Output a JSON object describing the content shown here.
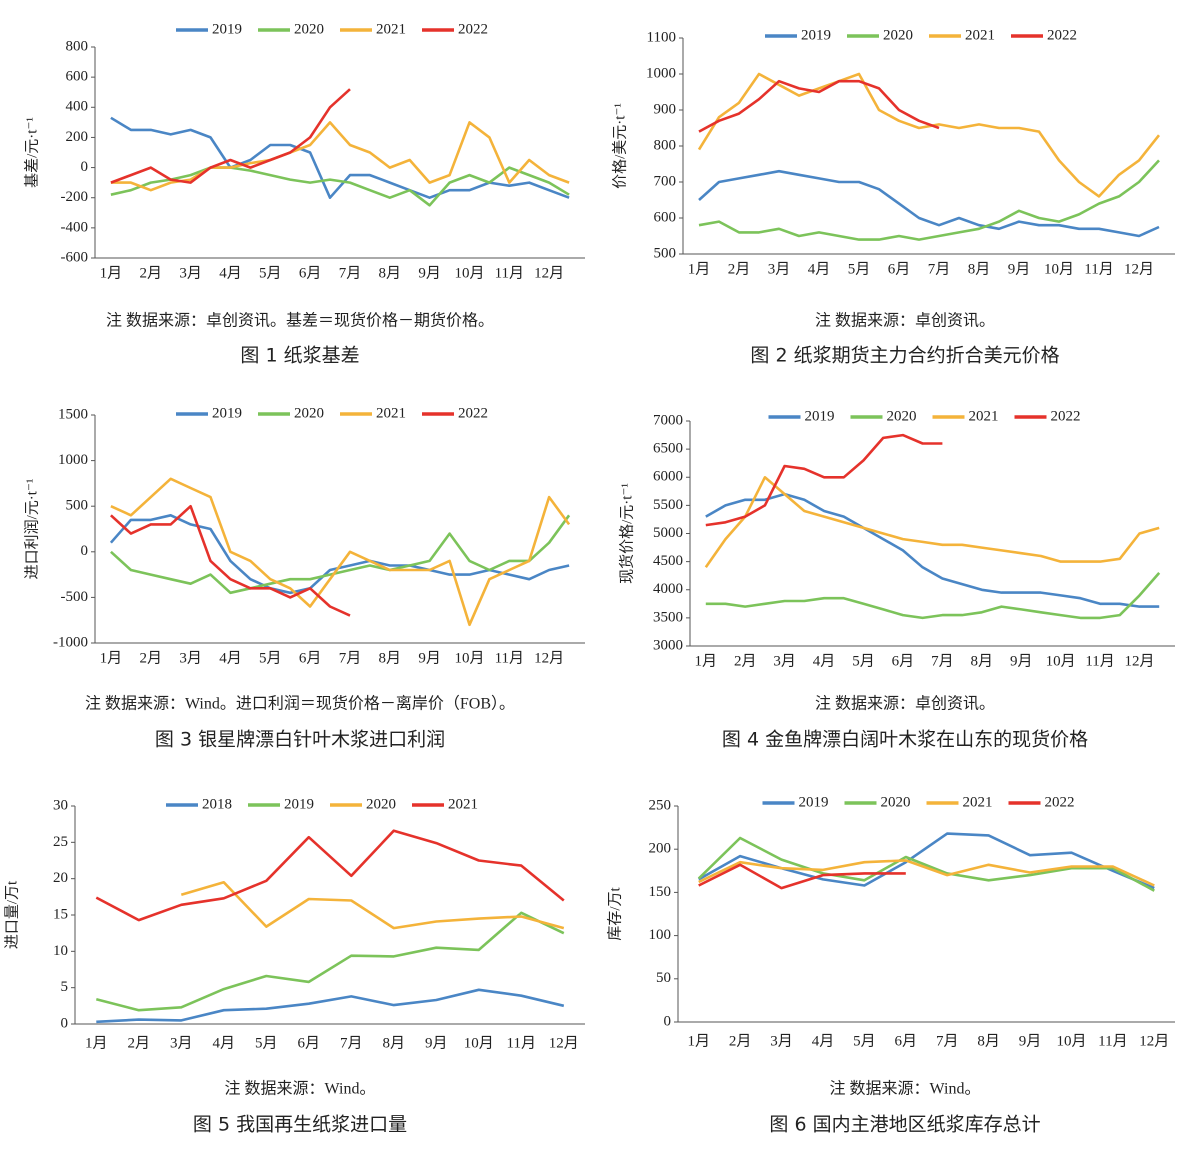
{
  "chart_data": [
    {
      "type": "line",
      "ylabel": "基差/元·t⁻¹",
      "note": "注  数据来源：卓创资讯。基差＝现货价格－期货价格。",
      "caption": "图 1   纸浆基差",
      "x": [
        1,
        1.5,
        2,
        2.5,
        3,
        3.5,
        4,
        4.5,
        5,
        5.5,
        6,
        6.5,
        7,
        7.5,
        8,
        8.5,
        9,
        9.5,
        10,
        10.5,
        11,
        11.5,
        12,
        12.5
      ],
      "xlim": [
        0.6,
        12.9
      ],
      "xticks": [
        {
          "value": 1,
          "label": "1月"
        },
        {
          "value": 2,
          "label": "2月"
        },
        {
          "value": 3,
          "label": "3月"
        },
        {
          "value": 4,
          "label": "4月"
        },
        {
          "value": 5,
          "label": "5月"
        },
        {
          "value": 6,
          "label": "6月"
        },
        {
          "value": 7,
          "label": "7月"
        },
        {
          "value": 8,
          "label": "8月"
        },
        {
          "value": 9,
          "label": "9月"
        },
        {
          "value": 10,
          "label": "10月"
        },
        {
          "value": 11,
          "label": "11月"
        },
        {
          "value": 12,
          "label": "12月"
        }
      ],
      "ylim": [
        -600,
        800
      ],
      "yticks": [
        -600,
        -400,
        -200,
        0,
        200,
        400,
        600,
        800
      ],
      "grid": false,
      "series": [
        {
          "name": "2019",
          "color": "#4a86c5",
          "values": [
            330,
            250,
            250,
            220,
            250,
            200,
            0,
            50,
            150,
            150,
            100,
            -200,
            -50,
            -50,
            -100,
            -150,
            -200,
            -150,
            -150,
            -100,
            -120,
            -100,
            -150,
            -200
          ]
        },
        {
          "name": "2020",
          "color": "#7cc35a",
          "values": [
            -180,
            -150,
            -100,
            -80,
            -50,
            0,
            0,
            -20,
            -50,
            -80,
            -100,
            -80,
            -100,
            -150,
            -200,
            -150,
            -250,
            -100,
            -50,
            -100,
            0,
            -50,
            -100,
            -180
          ]
        },
        {
          "name": "2021",
          "color": "#f4b33a",
          "values": [
            -100,
            -100,
            -150,
            -100,
            -80,
            0,
            0,
            30,
            50,
            100,
            150,
            300,
            150,
            100,
            0,
            50,
            -100,
            -50,
            300,
            200,
            -100,
            50,
            -50,
            -100
          ]
        },
        {
          "name": "2022",
          "color": "#e5322b",
          "values": [
            -100,
            -50,
            0,
            -80,
            -100,
            0,
            50,
            0,
            50,
            100,
            200,
            400,
            520,
            null,
            null,
            null,
            null,
            null,
            null,
            null,
            null,
            null,
            null,
            null
          ]
        }
      ]
    },
    {
      "type": "line",
      "ylabel": "价格/美元·t⁻¹",
      "note": "注  数据来源：卓创资讯。",
      "caption": "图 2   纸浆期货主力合约折合美元价格",
      "x": [
        1,
        1.5,
        2,
        2.5,
        3,
        3.5,
        4,
        4.5,
        5,
        5.5,
        6,
        6.5,
        7,
        7.5,
        8,
        8.5,
        9,
        9.5,
        10,
        10.5,
        11,
        11.5,
        12,
        12.5
      ],
      "xlim": [
        0.6,
        12.9
      ],
      "xticks": [
        {
          "value": 1,
          "label": "1月"
        },
        {
          "value": 2,
          "label": "2月"
        },
        {
          "value": 3,
          "label": "3月"
        },
        {
          "value": 4,
          "label": "4月"
        },
        {
          "value": 5,
          "label": "5月"
        },
        {
          "value": 6,
          "label": "6月"
        },
        {
          "value": 7,
          "label": "7月"
        },
        {
          "value": 8,
          "label": "8月"
        },
        {
          "value": 9,
          "label": "9月"
        },
        {
          "value": 10,
          "label": "10月"
        },
        {
          "value": 11,
          "label": "11月"
        },
        {
          "value": 12,
          "label": "12月"
        }
      ],
      "ylim": [
        500,
        1100
      ],
      "yticks": [
        500,
        600,
        700,
        800,
        900,
        1000,
        1100
      ],
      "grid": false,
      "series": [
        {
          "name": "2019",
          "color": "#4a86c5",
          "values": [
            650,
            700,
            710,
            720,
            730,
            720,
            710,
            700,
            700,
            680,
            640,
            600,
            580,
            600,
            580,
            570,
            590,
            580,
            580,
            570,
            570,
            560,
            550,
            575
          ]
        },
        {
          "name": "2020",
          "color": "#7cc35a",
          "values": [
            580,
            590,
            560,
            560,
            570,
            550,
            560,
            550,
            540,
            540,
            550,
            540,
            550,
            560,
            570,
            590,
            620,
            600,
            590,
            610,
            640,
            660,
            700,
            760
          ]
        },
        {
          "name": "2021",
          "color": "#f4b33a",
          "values": [
            790,
            880,
            920,
            1000,
            970,
            940,
            960,
            980,
            1000,
            900,
            870,
            850,
            860,
            850,
            860,
            850,
            850,
            840,
            760,
            700,
            660,
            720,
            760,
            830
          ]
        },
        {
          "name": "2022",
          "color": "#e5322b",
          "values": [
            840,
            870,
            890,
            930,
            980,
            960,
            950,
            980,
            980,
            960,
            900,
            870,
            850,
            null,
            null,
            null,
            null,
            null,
            null,
            null,
            null,
            null,
            null,
            null
          ]
        }
      ]
    },
    {
      "type": "line",
      "ylabel": "进口利润/元·t⁻¹",
      "note": "注  数据来源：Wind。进口利润＝现货价格－离岸价（FOB）。",
      "caption": "图 3   银星牌漂白针叶木浆进口利润",
      "x": [
        1,
        1.5,
        2,
        2.5,
        3,
        3.5,
        4,
        4.5,
        5,
        5.5,
        6,
        6.5,
        7,
        7.5,
        8,
        8.5,
        9,
        9.5,
        10,
        10.5,
        11,
        11.5,
        12,
        12.5
      ],
      "xlim": [
        0.6,
        12.9
      ],
      "xticks": [
        {
          "value": 1,
          "label": "1月"
        },
        {
          "value": 2,
          "label": "2月"
        },
        {
          "value": 3,
          "label": "3月"
        },
        {
          "value": 4,
          "label": "4月"
        },
        {
          "value": 5,
          "label": "5月"
        },
        {
          "value": 6,
          "label": "6月"
        },
        {
          "value": 7,
          "label": "7月"
        },
        {
          "value": 8,
          "label": "8月"
        },
        {
          "value": 9,
          "label": "9月"
        },
        {
          "value": 10,
          "label": "10月"
        },
        {
          "value": 11,
          "label": "11月"
        },
        {
          "value": 12,
          "label": "12月"
        }
      ],
      "ylim": [
        -1000,
        1500
      ],
      "yticks": [
        -1000,
        -500,
        0,
        500,
        1000,
        1500
      ],
      "grid": false,
      "series": [
        {
          "name": "2019",
          "color": "#4a86c5",
          "values": [
            100,
            350,
            350,
            400,
            300,
            250,
            -100,
            -300,
            -400,
            -450,
            -400,
            -200,
            -150,
            -100,
            -150,
            -150,
            -200,
            -250,
            -250,
            -200,
            -250,
            -300,
            -200,
            -150
          ]
        },
        {
          "name": "2020",
          "color": "#7cc35a",
          "values": [
            0,
            -200,
            -250,
            -300,
            -350,
            -250,
            -450,
            -400,
            -350,
            -300,
            -300,
            -250,
            -200,
            -150,
            -200,
            -150,
            -100,
            200,
            -100,
            -200,
            -100,
            -100,
            100,
            400
          ]
        },
        {
          "name": "2021",
          "color": "#f4b33a",
          "values": [
            500,
            400,
            600,
            800,
            700,
            600,
            0,
            -100,
            -300,
            -400,
            -600,
            -300,
            0,
            -100,
            -200,
            -200,
            -200,
            -100,
            -800,
            -300,
            -200,
            -100,
            600,
            300
          ]
        },
        {
          "name": "2022",
          "color": "#e5322b",
          "values": [
            400,
            200,
            300,
            300,
            500,
            -100,
            -300,
            -400,
            -400,
            -500,
            -400,
            -600,
            -700,
            null,
            null,
            null,
            null,
            null,
            null,
            null,
            null,
            null,
            null,
            null
          ]
        }
      ]
    },
    {
      "type": "line",
      "ylabel": "现货价格/元·t⁻¹",
      "note": "注  数据来源：卓创资讯。",
      "caption": "图 4   金鱼牌漂白阔叶木浆在山东的现货价格",
      "x": [
        1,
        1.5,
        2,
        2.5,
        3,
        3.5,
        4,
        4.5,
        5,
        5.5,
        6,
        6.5,
        7,
        7.5,
        8,
        8.5,
        9,
        9.5,
        10,
        10.5,
        11,
        11.5,
        12,
        12.5
      ],
      "xlim": [
        0.6,
        12.9
      ],
      "xticks": [
        {
          "value": 1,
          "label": "1月"
        },
        {
          "value": 2,
          "label": "2月"
        },
        {
          "value": 3,
          "label": "3月"
        },
        {
          "value": 4,
          "label": "4月"
        },
        {
          "value": 5,
          "label": "5月"
        },
        {
          "value": 6,
          "label": "6月"
        },
        {
          "value": 7,
          "label": "7月"
        },
        {
          "value": 8,
          "label": "8月"
        },
        {
          "value": 9,
          "label": "9月"
        },
        {
          "value": 10,
          "label": "10月"
        },
        {
          "value": 11,
          "label": "11月"
        },
        {
          "value": 12,
          "label": "12月"
        }
      ],
      "ylim": [
        3000,
        7000
      ],
      "yticks": [
        3000,
        3500,
        4000,
        4500,
        5000,
        5500,
        6000,
        6500,
        7000
      ],
      "grid": false,
      "series": [
        {
          "name": "2019",
          "color": "#4a86c5",
          "values": [
            5300,
            5500,
            5600,
            5600,
            5700,
            5600,
            5400,
            5300,
            5100,
            4900,
            4700,
            4400,
            4200,
            4100,
            4000,
            3950,
            3950,
            3950,
            3900,
            3850,
            3750,
            3750,
            3700,
            3700
          ]
        },
        {
          "name": "2020",
          "color": "#7cc35a",
          "values": [
            3750,
            3750,
            3700,
            3750,
            3800,
            3800,
            3850,
            3850,
            3750,
            3650,
            3550,
            3500,
            3550,
            3550,
            3600,
            3700,
            3650,
            3600,
            3550,
            3500,
            3500,
            3550,
            3900,
            4300
          ]
        },
        {
          "name": "2021",
          "color": "#f4b33a",
          "values": [
            4400,
            4900,
            5300,
            6000,
            5700,
            5400,
            5300,
            5200,
            5100,
            5000,
            4900,
            4850,
            4800,
            4800,
            4750,
            4700,
            4650,
            4600,
            4500,
            4500,
            4500,
            4550,
            5000,
            5100
          ]
        },
        {
          "name": "2022",
          "color": "#e5322b",
          "values": [
            5150,
            5200,
            5300,
            5500,
            6200,
            6150,
            6000,
            6000,
            6300,
            6700,
            6750,
            6600,
            6600,
            null,
            null,
            null,
            null,
            null,
            null,
            null,
            null,
            null,
            null,
            null
          ]
        }
      ]
    },
    {
      "type": "line",
      "ylabel": "进口量/万t",
      "note": "注  数据来源：Wind。",
      "caption": "图 5   我国再生纸浆进口量",
      "categories": [
        "1月",
        "2月",
        "3月",
        "4月",
        "5月",
        "6月",
        "7月",
        "8月",
        "9月",
        "10月",
        "11月",
        "12月"
      ],
      "ylim": [
        0,
        30
      ],
      "yticks": [
        0,
        5,
        10,
        15,
        20,
        25,
        30
      ],
      "grid": false,
      "series": [
        {
          "name": "2018",
          "color": "#4a86c5",
          "values": [
            0.3,
            0.6,
            0.5,
            1.9,
            2.1,
            2.8,
            3.8,
            2.6,
            3.3,
            4.7,
            3.9,
            2.5
          ]
        },
        {
          "name": "2019",
          "color": "#7cc35a",
          "values": [
            3.4,
            1.9,
            2.3,
            4.8,
            6.6,
            5.8,
            9.4,
            9.3,
            10.5,
            10.2,
            15.3,
            12.5
          ]
        },
        {
          "name": "2020",
          "color": "#f4b33a",
          "values": [
            null,
            null,
            17.8,
            19.5,
            13.4,
            17.2,
            17.0,
            13.2,
            14.1,
            14.5,
            14.8,
            13.2
          ]
        },
        {
          "name": "2021",
          "color": "#e5322b",
          "values": [
            17.4,
            14.3,
            16.4,
            17.3,
            19.7,
            25.7,
            20.4,
            26.6,
            24.9,
            22.5,
            21.8,
            17.0
          ]
        }
      ]
    },
    {
      "type": "line",
      "ylabel": "库存/万t",
      "note": "注  数据来源：Wind。",
      "caption": "图 6   国内主港地区纸浆库存总计",
      "categories": [
        "1月",
        "2月",
        "3月",
        "4月",
        "5月",
        "6月",
        "7月",
        "8月",
        "9月",
        "10月",
        "11月",
        "12月"
      ],
      "ylim": [
        0,
        250
      ],
      "yticks": [
        0,
        50,
        100,
        150,
        200,
        250
      ],
      "grid": false,
      "series": [
        {
          "name": "2019",
          "color": "#4a86c5",
          "values": [
            165,
            192,
            178,
            165,
            158,
            185,
            218,
            216,
            193,
            196,
            175,
            155
          ]
        },
        {
          "name": "2020",
          "color": "#7cc35a",
          "values": [
            166,
            213,
            188,
            172,
            164,
            191,
            172,
            164,
            170,
            178,
            178,
            152
          ]
        },
        {
          "name": "2021",
          "color": "#f4b33a",
          "values": [
            162,
            185,
            178,
            176,
            185,
            187,
            170,
            182,
            173,
            180,
            180,
            158
          ]
        },
        {
          "name": "2022",
          "color": "#e5322b",
          "values": [
            158,
            182,
            155,
            170,
            172,
            172,
            null,
            null,
            null,
            null,
            null,
            null
          ]
        }
      ]
    }
  ]
}
